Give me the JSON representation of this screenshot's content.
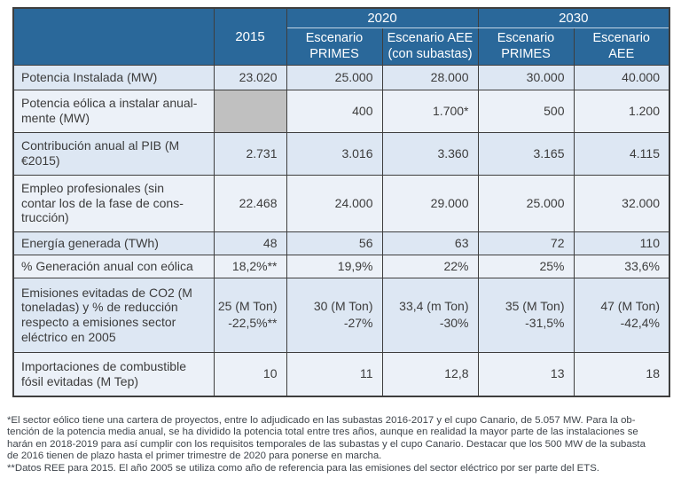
{
  "colors": {
    "header_bg": "#2a689a",
    "header_text": "#ffffff",
    "row_odd_bg": "#dde7f3",
    "row_even_bg": "#ecf1f8",
    "empty_cell_gray": "#c0c0c0",
    "grid_border": "#3e3e3e"
  },
  "header": {
    "corner": "",
    "col2015": "2015",
    "group2020": {
      "year": "2020",
      "sub": [
        "Escenario\nPRIMES",
        "Escenario AEE\n(con subastas)"
      ]
    },
    "group2030": {
      "year": "2030",
      "sub": [
        "Escenario\nPRIMES",
        "Escenario\nAEE"
      ]
    }
  },
  "table": {
    "rows": [
      {
        "label": "Potencia Instalada (MW)",
        "values": [
          "23.020",
          "25.000",
          "28.000",
          "30.000",
          "40.000"
        ]
      },
      {
        "label": "Potencia eólica a instalar anual-\nmente (MW)",
        "values": [
          "",
          "400",
          "1.700*",
          "500",
          "1.200"
        ]
      },
      {
        "label": "Contribución anual al PIB (M\n€2015)",
        "values": [
          "2.731",
          "3.016",
          "3.360",
          "3.165",
          "4.115"
        ]
      },
      {
        "label": "Empleo profesionales (sin\ncontar los de la fase de cons-\ntrucción)",
        "values": [
          "22.468",
          "24.000",
          "29.000",
          "25.000",
          "32.000"
        ]
      },
      {
        "label": "Energía generada (TWh)",
        "values": [
          "48",
          "56",
          "63",
          "72",
          "110"
        ]
      },
      {
        "label": "% Generación anual con eólica",
        "values": [
          "18,2%**",
          "19,9%",
          "22%",
          "25%",
          "33,6%"
        ]
      },
      {
        "label": "Emisiones evitadas de CO2 (M\ntoneladas) y % de reducción\nrespecto a emisiones sector\neléctrico en 2005",
        "values": [
          "25 (M Ton)\n-22,5%**",
          "30 (M Ton)\n-27%",
          "33,4 (m Ton)\n-30%",
          "35 (M Ton)\n-31,5%",
          "47 (M Ton)\n-42,4%"
        ]
      },
      {
        "label": "Importaciones de combustible\nfósil evitadas (M Tep)",
        "values": [
          "10",
          "11",
          "12,8",
          "13",
          "18"
        ]
      }
    ]
  },
  "footnotes": {
    "lines": [
      "*El sector eólico tiene una cartera de proyectos, entre lo adjudicado en las subastas 2016-2017 y el cupo Canario, de 5.057 MW. Para la ob-",
      "tención de la potencia media anual, se ha dividido la potencia total entre tres años, aunque en realidad la mayor parte de las instalaciones se",
      "harán en 2018-2019 para así cumplir con los requisitos temporales de las subastas y el cupo Canario. Destacar que los 500 MW de la subasta",
      "de 2016 tienen de plazo hasta el primer trimestre de 2020 para ponerse en marcha.",
      "**Datos REE para 2015. El año 2005 se utiliza como año de referencia para las emisiones del sector eléctrico por ser parte del ETS."
    ]
  }
}
